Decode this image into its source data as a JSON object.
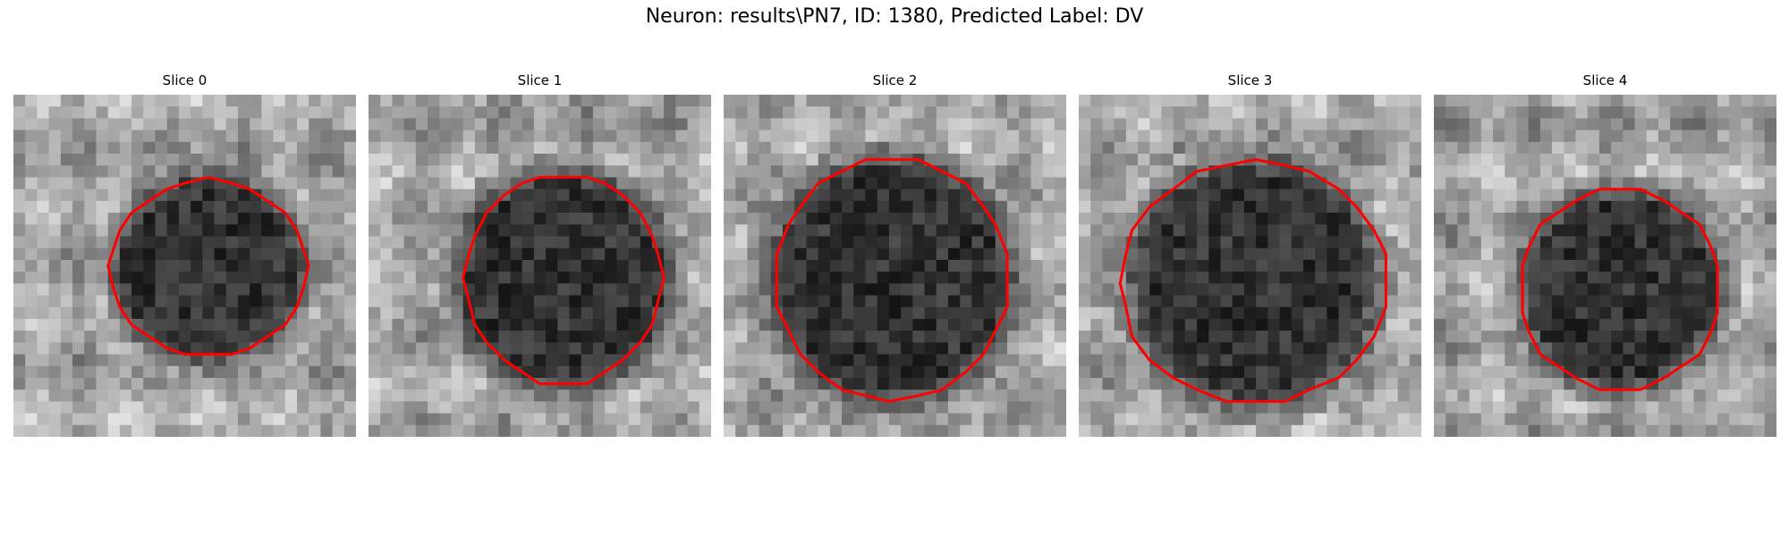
{
  "figure": {
    "title": "Neuron: results\\PN7, ID: 1380, Predicted Label: DV"
  },
  "colors": {
    "contour": "#ff0000",
    "cmap": "gray"
  },
  "panels": [
    {
      "title": "Slice 0"
    },
    {
      "title": "Slice 1"
    },
    {
      "title": "Slice 2"
    },
    {
      "title": "Slice 3"
    },
    {
      "title": "Slice 4"
    }
  ]
}
